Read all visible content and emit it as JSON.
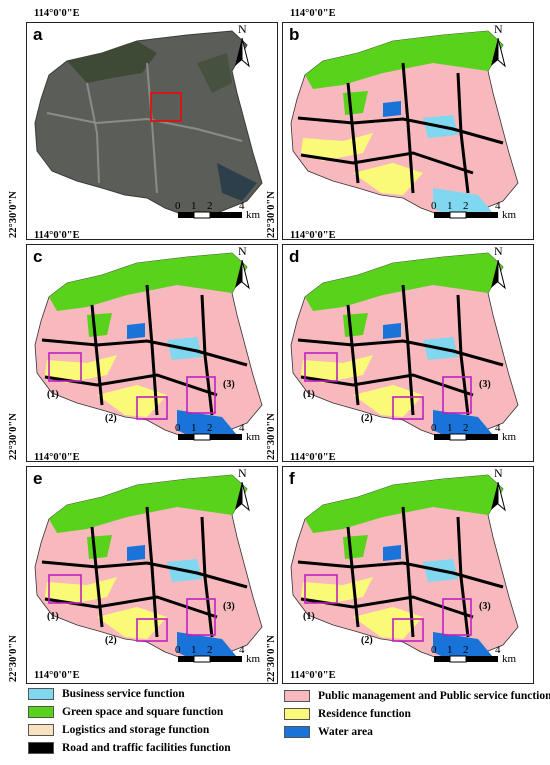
{
  "coords": {
    "lon": "114°0'0\"E",
    "lat": "22°30'0\"N"
  },
  "scale": {
    "t0": "0",
    "t1": "1",
    "t2": "2",
    "t4": "4",
    "unit": "km"
  },
  "north": "N",
  "panels": [
    {
      "letter": "a",
      "kind": "satellite"
    },
    {
      "letter": "b",
      "kind": "map"
    },
    {
      "letter": "c",
      "kind": "map",
      "regions": [
        "(1)",
        "(2)",
        "(3)"
      ]
    },
    {
      "letter": "d",
      "kind": "map",
      "regions": [
        "(1)",
        "(2)",
        "(3)"
      ]
    },
    {
      "letter": "e",
      "kind": "map",
      "regions": [
        "(1)",
        "(2)",
        "(3)"
      ]
    },
    {
      "letter": "f",
      "kind": "map",
      "regions": [
        "(1)",
        "(2)",
        "(3)"
      ]
    }
  ],
  "legend": [
    {
      "label": "Business service function",
      "color": "#7fd8f0"
    },
    {
      "label": "Green space and square function",
      "color": "#58d21a"
    },
    {
      "label": "Logistics and storage function",
      "color": "#f7e1bf"
    },
    {
      "label": "Road and traffic facilities function",
      "color": "#000000"
    },
    {
      "label": "Public management and Public service function",
      "color": "#f7b9bd"
    },
    {
      "label": "Residence function",
      "color": "#fafa78"
    },
    {
      "label": "Water area",
      "color": "#1a73d8"
    }
  ]
}
